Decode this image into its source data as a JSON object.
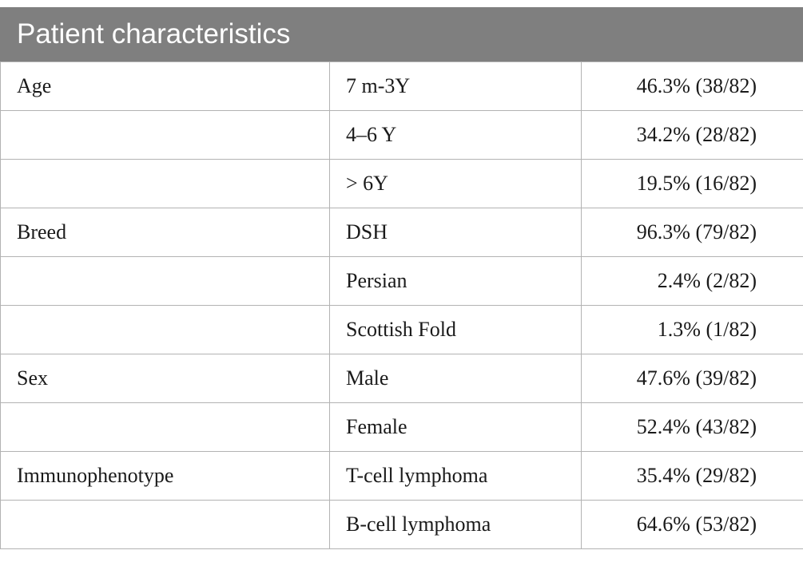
{
  "table": {
    "title": "Patient characteristics",
    "rows": [
      {
        "category": "Age",
        "subgroup": "7 m-3Y",
        "value": "46.3% (38/82)"
      },
      {
        "category": "",
        "subgroup": "4–6 Y",
        "value": "34.2% (28/82)"
      },
      {
        "category": "",
        "subgroup": "> 6Y",
        "value": "19.5% (16/82)"
      },
      {
        "category": "Breed",
        "subgroup": "DSH",
        "value": "96.3% (79/82)"
      },
      {
        "category": "",
        "subgroup": "Persian",
        "value": "2.4% (2/82)"
      },
      {
        "category": "",
        "subgroup": "Scottish Fold",
        "value": "1.3% (1/82)"
      },
      {
        "category": "Sex",
        "subgroup": "Male",
        "value": "47.6% (39/82)"
      },
      {
        "category": "",
        "subgroup": "Female",
        "value": "52.4% (43/82)"
      },
      {
        "category": "Immunophenotype",
        "subgroup": "T-cell lymphoma",
        "value": "35.4% (29/82)"
      },
      {
        "category": "",
        "subgroup": "B-cell lymphoma",
        "value": "64.6% (53/82)"
      }
    ]
  },
  "colors": {
    "header_background": "#7f7f7f",
    "header_text": "#ffffff",
    "border": "#b3b3b3"
  }
}
